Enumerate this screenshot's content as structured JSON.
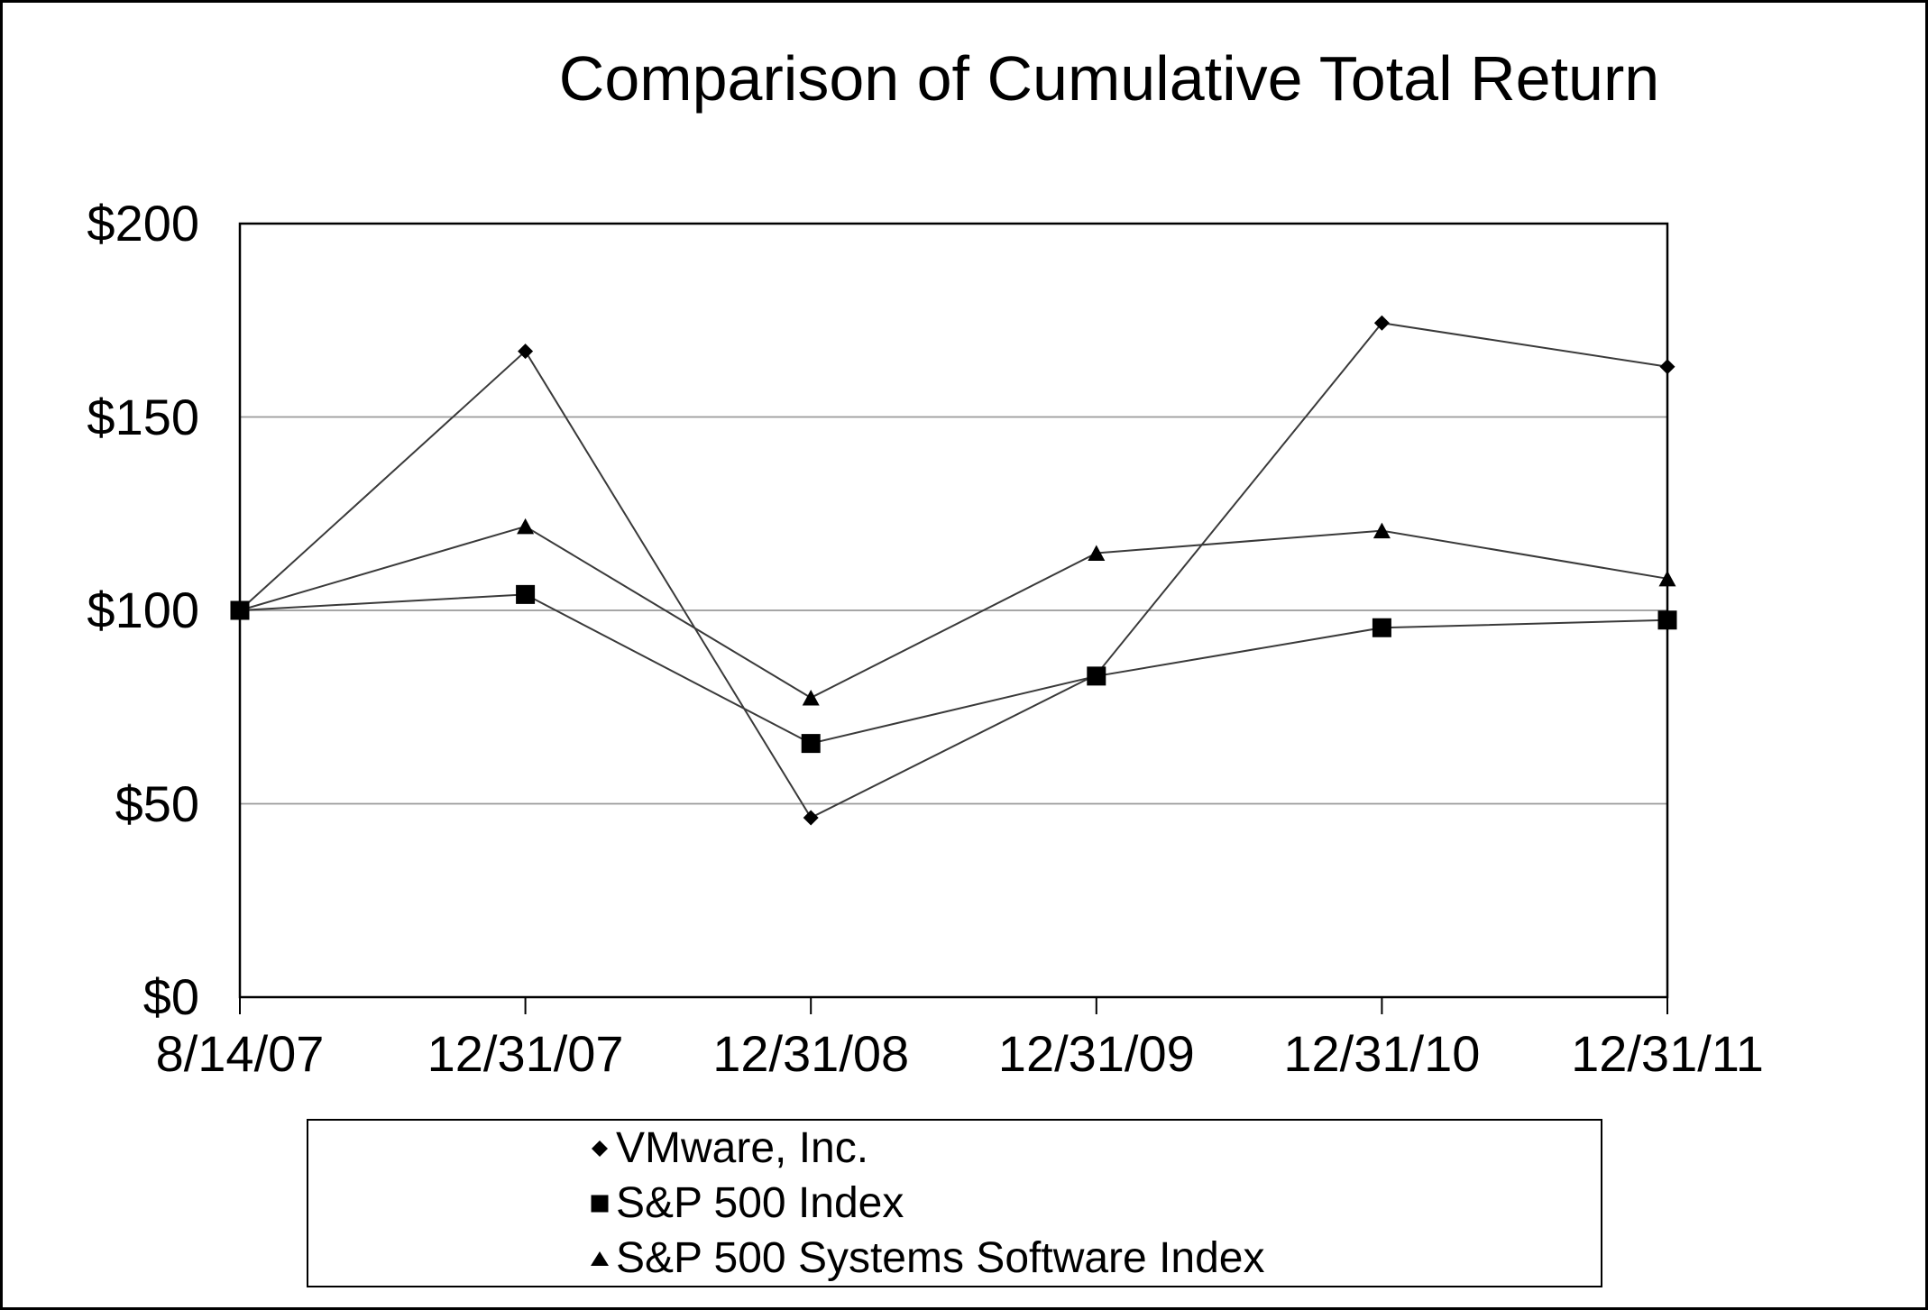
{
  "title": "Comparison of Cumulative Total Return",
  "colors": {
    "background": "#ffffff",
    "border": "#000000",
    "axis": "#000000",
    "gridline": "#9a9a9a",
    "series_line": "#3a3a3a",
    "marker": "#000000",
    "text": "#000000"
  },
  "y_axis": {
    "tick_labels": [
      "$200",
      "$150",
      "$100",
      "$50",
      "$0"
    ],
    "ticks": [
      200,
      150,
      100,
      50,
      0
    ]
  },
  "legend": {
    "items": [
      {
        "marker": "diamond",
        "label": "VMware, Inc."
      },
      {
        "marker": "square",
        "label": "S&P 500 Index"
      },
      {
        "marker": "triangle",
        "label": "S&P 500 Systems Software Index"
      }
    ]
  },
  "chart_data": {
    "type": "line",
    "title": "Comparison of Cumulative Total Return",
    "x": [
      "8/14/07",
      "12/31/07",
      "12/31/08",
      "12/31/09",
      "12/31/10",
      "12/31/11"
    ],
    "series": [
      {
        "name": "VMware, Inc.",
        "marker": "diamond",
        "values": [
          100,
          167,
          46.4,
          83.4,
          174.3,
          163
        ]
      },
      {
        "name": "S&P 500 Index",
        "marker": "square",
        "values": [
          100,
          104.1,
          65.6,
          83,
          95.5,
          97.5
        ]
      },
      {
        "name": "S&P 500 Systems Software Index",
        "marker": "triangle",
        "values": [
          100,
          121.7,
          77.4,
          114.8,
          120.6,
          108.2
        ]
      }
    ],
    "ylim": [
      0,
      200
    ],
    "y_ticks": [
      0,
      50,
      100,
      150,
      200
    ],
    "grid": "horizontal",
    "legend_position": "bottom",
    "xlabel": "",
    "ylabel": ""
  }
}
